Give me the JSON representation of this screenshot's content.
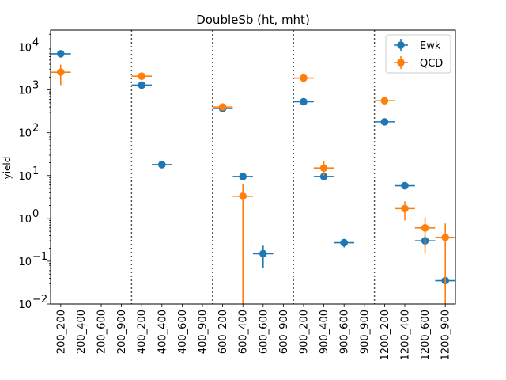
{
  "chart_data": {
    "type": "scatter",
    "title": "DoubleSb (ht, mht)",
    "xlabel": "",
    "ylabel": "yield",
    "yscale": "log",
    "ylim": [
      0.01,
      25000
    ],
    "yticks": [
      {
        "value": 0.01,
        "base": "10",
        "exp": "−2"
      },
      {
        "value": 0.1,
        "base": "10",
        "exp": "−1"
      },
      {
        "value": 1,
        "base": "10",
        "exp": "0"
      },
      {
        "value": 10,
        "base": "10",
        "exp": "1"
      },
      {
        "value": 100,
        "base": "10",
        "exp": "2"
      },
      {
        "value": 1000,
        "base": "10",
        "exp": "3"
      },
      {
        "value": 10000,
        "base": "10",
        "exp": "4"
      }
    ],
    "categories": [
      "200_200",
      "200_400",
      "200_600",
      "200_900",
      "400_200",
      "400_400",
      "400_600",
      "400_900",
      "600_200",
      "600_400",
      "600_600",
      "600_900",
      "900_200",
      "900_400",
      "900_600",
      "900_900",
      "1200_200",
      "1200_400",
      "1200_600",
      "1200_900"
    ],
    "vlines_after_index": [
      3,
      7,
      11,
      15
    ],
    "grid": false,
    "legend_position": "top-right",
    "series": [
      {
        "name": "Ewk",
        "color": "#1f77b4",
        "values": [
          7000,
          null,
          null,
          null,
          1300,
          18,
          null,
          null,
          370,
          9.5,
          0.15,
          null,
          530,
          9.5,
          0.27,
          null,
          180,
          5.8,
          0.3,
          0.035
        ],
        "err_low": [
          300,
          null,
          null,
          null,
          100,
          1.5,
          null,
          null,
          30,
          1.0,
          0.08,
          null,
          40,
          1.0,
          0.06,
          null,
          15,
          0.6,
          0.08,
          0.01
        ],
        "err_high": [
          300,
          null,
          null,
          null,
          100,
          1.5,
          null,
          null,
          30,
          1.0,
          0.08,
          null,
          40,
          1.0,
          0.06,
          null,
          15,
          0.6,
          0.08,
          0.01
        ]
      },
      {
        "name": "QCD",
        "color": "#ff7f0e",
        "values": [
          2600,
          null,
          null,
          null,
          2100,
          null,
          null,
          null,
          400,
          3.3,
          null,
          null,
          1900,
          15,
          null,
          null,
          560,
          1.7,
          0.6,
          0.36
        ],
        "err_low": [
          1300,
          null,
          null,
          null,
          300,
          null,
          null,
          null,
          50,
          3.3,
          null,
          null,
          150,
          5,
          null,
          null,
          60,
          0.8,
          0.45,
          0.35
        ],
        "err_high": [
          1300,
          null,
          null,
          null,
          300,
          null,
          null,
          null,
          50,
          3.0,
          null,
          null,
          150,
          7,
          null,
          null,
          60,
          0.8,
          0.45,
          0.4
        ]
      }
    ]
  }
}
